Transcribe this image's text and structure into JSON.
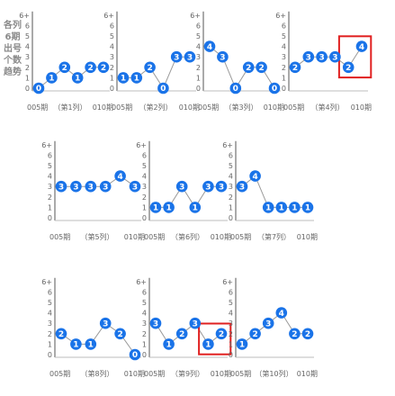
{
  "side_label": "各列6期出号个数趋势",
  "y_tick_labels": [
    "0",
    "1",
    "2",
    "3",
    "4",
    "5",
    "6",
    "6+"
  ],
  "chart_data": {
    "type": "line",
    "ylim": [
      0,
      7
    ],
    "grid": false,
    "charts": [
      {
        "x_start": "005期",
        "x_mid": "（第1列）",
        "x_end": "010期",
        "values": [
          0,
          1,
          2,
          1,
          2,
          2
        ],
        "highlight": []
      },
      {
        "x_start": "005期",
        "x_mid": "（第2列）",
        "x_end": "010期",
        "values": [
          1,
          1,
          2,
          0,
          3,
          3
        ],
        "highlight": []
      },
      {
        "x_start": "005期",
        "x_mid": "（第3列）",
        "x_end": "010期",
        "values": [
          4,
          3,
          0,
          2,
          2,
          0
        ],
        "highlight": []
      },
      {
        "x_start": "005期",
        "x_mid": "（第4列）",
        "x_end": "010期",
        "values": [
          2,
          3,
          3,
          3,
          2,
          4
        ],
        "highlight": [
          4,
          5
        ]
      },
      {
        "x_start": "005期",
        "x_mid": "（第5列）",
        "x_end": "010期",
        "values": [
          3,
          3,
          3,
          3,
          4,
          3
        ],
        "highlight": []
      },
      {
        "x_start": "005期",
        "x_mid": "（第6列）",
        "x_end": "010期",
        "values": [
          1,
          1,
          3,
          1,
          3,
          3
        ],
        "highlight": []
      },
      {
        "x_start": "005期",
        "x_mid": "（第7列）",
        "x_end": "010期",
        "values": [
          3,
          4,
          1,
          1,
          1,
          1
        ],
        "highlight": []
      },
      {
        "x_start": "005期",
        "x_mid": "（第8列）",
        "x_end": "010期",
        "values": [
          2,
          1,
          1,
          3,
          2,
          0
        ],
        "highlight": []
      },
      {
        "x_start": "005期",
        "x_mid": "（第9列）",
        "x_end": "010期",
        "values": [
          3,
          1,
          2,
          3,
          1,
          2
        ],
        "highlight": [
          4,
          5
        ]
      },
      {
        "x_start": "005期",
        "x_mid": "（第10列）",
        "x_end": "010期",
        "values": [
          1,
          2,
          3,
          4,
          2,
          2
        ],
        "highlight": []
      }
    ]
  },
  "colors": {
    "marker": "#1a73e8",
    "marker_text": "#ffffff",
    "line": "#9a9a9a",
    "axis": "#555555",
    "highlight_box": "#e02020",
    "label": "#666666"
  }
}
